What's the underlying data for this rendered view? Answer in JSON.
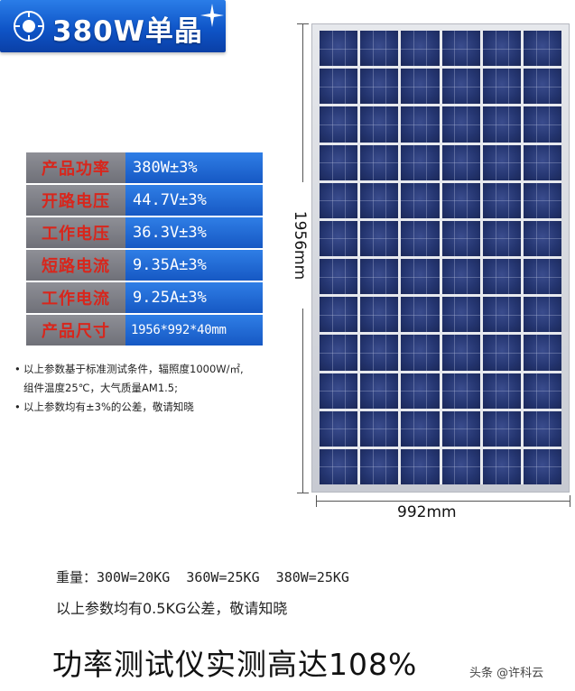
{
  "banner": {
    "title": "380W单晶"
  },
  "specs": [
    {
      "label": "产品功率",
      "value": "380W±3%"
    },
    {
      "label": "开路电压",
      "value": "44.7V±3%"
    },
    {
      "label": "工作电压",
      "value": "36.3V±3%"
    },
    {
      "label": "短路电流",
      "value": "9.35A±3%"
    },
    {
      "label": "工作电流",
      "value": "9.25A±3%"
    },
    {
      "label": "产品尺寸",
      "value": "1956*992*40mm"
    }
  ],
  "notes": {
    "line1": "以上参数基于标准测试条件，辐照度1000W/㎡,",
    "line2": "组件温度25℃，大气质量AM1.5;",
    "line3": "以上参数均有±3%的公差，敬请知晓"
  },
  "dimensions": {
    "height": "1956mm",
    "width": "992mm"
  },
  "weights": "重量：300W=20KG  360W=25KG  380W=25KG",
  "tolerance": "以上参数均有0.5KG公差，敬请知晓",
  "headline": "功率测试仪实测高达108%",
  "watermark": "头条 @许科云",
  "colors": {
    "banner_blue": "#1658c4",
    "label_red": "#d8261c",
    "label_gray": "#7f8088",
    "cell_blue": "#243570"
  }
}
